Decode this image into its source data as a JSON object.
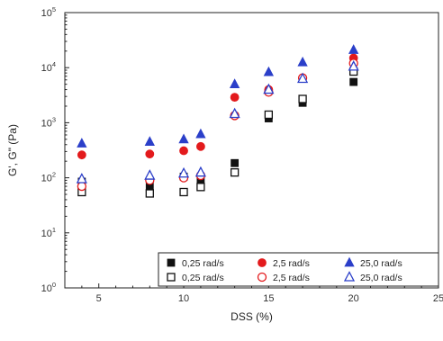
{
  "chart_data": {
    "type": "scatter",
    "xlabel": "DSS (%)",
    "ylabel": "G', G\" (Pa)",
    "xlim": [
      3,
      25
    ],
    "ylim": [
      1,
      100000
    ],
    "yscale": "log",
    "xticks": [
      5,
      10,
      15,
      20,
      25
    ],
    "yticks": [
      {
        "value": 1,
        "base": "10",
        "exp": "0"
      },
      {
        "value": 10,
        "base": "10",
        "exp": "1"
      },
      {
        "value": 100,
        "base": "10",
        "exp": "2"
      },
      {
        "value": 1000,
        "base": "10",
        "exp": "3"
      },
      {
        "value": 10000,
        "base": "10",
        "exp": "4"
      },
      {
        "value": 100000,
        "base": "10",
        "exp": "5"
      }
    ],
    "grid": false,
    "legend_position": "bottom-right",
    "series": [
      {
        "name": "0,25 rad/s",
        "marker": "square",
        "filled": true,
        "color": "#111111",
        "x": [
          4,
          8,
          10,
          11,
          13,
          15,
          17,
          20
        ],
        "y": [
          85,
          70,
          105,
          90,
          185,
          1200,
          2300,
          5500
        ]
      },
      {
        "name": "2,5 rad/s",
        "marker": "circle",
        "filled": true,
        "color": "#e31a1c",
        "x": [
          4,
          8,
          10,
          11,
          13,
          15,
          17,
          20
        ],
        "y": [
          260,
          270,
          310,
          370,
          2900,
          4000,
          6500,
          15000
        ]
      },
      {
        "name": "25,0 rad/s",
        "marker": "triangle",
        "filled": true,
        "color": "#2b3fc9",
        "x": [
          4,
          8,
          10,
          11,
          13,
          15,
          17,
          20
        ],
        "y": [
          420,
          450,
          500,
          620,
          5000,
          8300,
          12500,
          21000
        ]
      },
      {
        "name": "0,25 rad/s",
        "marker": "square",
        "filled": false,
        "color": "#111111",
        "x": [
          4,
          8,
          10,
          11,
          13,
          15,
          17,
          20
        ],
        "y": [
          55,
          52,
          55,
          68,
          125,
          1400,
          2700,
          8500
        ]
      },
      {
        "name": "2,5 rad/s",
        "marker": "circle",
        "filled": false,
        "color": "#e31a1c",
        "x": [
          4,
          8,
          10,
          11,
          13,
          15,
          17,
          20
        ],
        "y": [
          70,
          90,
          100,
          110,
          1350,
          3600,
          6500,
          12000
        ]
      },
      {
        "name": "25,0 rad/s",
        "marker": "triangle",
        "filled": false,
        "color": "#2b3fc9",
        "x": [
          4,
          8,
          10,
          11,
          13,
          15,
          17,
          20
        ],
        "y": [
          95,
          110,
          120,
          125,
          1450,
          4000,
          6300,
          10500
        ]
      }
    ]
  }
}
